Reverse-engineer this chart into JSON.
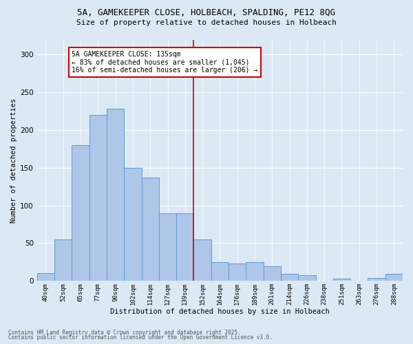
{
  "title_line1": "5A, GAMEKEEPER CLOSE, HOLBEACH, SPALDING, PE12 8QG",
  "title_line2": "Size of property relative to detached houses in Holbeach",
  "xlabel": "Distribution of detached houses by size in Holbeach",
  "ylabel": "Number of detached properties",
  "footer_line1": "Contains HM Land Registry data © Crown copyright and database right 2025.",
  "footer_line2": "Contains public sector information licensed under the Open Government Licence v3.0.",
  "categories": [
    "40sqm",
    "52sqm",
    "65sqm",
    "77sqm",
    "90sqm",
    "102sqm",
    "114sqm",
    "127sqm",
    "139sqm",
    "152sqm",
    "164sqm",
    "176sqm",
    "189sqm",
    "201sqm",
    "214sqm",
    "226sqm",
    "238sqm",
    "251sqm",
    "263sqm",
    "276sqm",
    "288sqm"
  ],
  "values": [
    10,
    55,
    180,
    220,
    228,
    150,
    137,
    90,
    90,
    55,
    25,
    23,
    25,
    19,
    9,
    8,
    0,
    3,
    0,
    4,
    9
  ],
  "bar_color": "#aec6e8",
  "bar_edge_color": "#5b9bd5",
  "background_color": "#dce9f5",
  "plot_bg_color": "#dce9f5",
  "grid_color": "#ffffff",
  "vline_x": 8.5,
  "vline_color": "#cc0000",
  "annotation_text": "5A GAMEKEEPER CLOSE: 135sqm\n← 83% of detached houses are smaller (1,045)\n16% of semi-detached houses are larger (206) →",
  "annotation_box_color": "#ffffff",
  "annotation_box_edge_color": "#cc0000",
  "ylim": [
    0,
    320
  ],
  "yticks": [
    0,
    50,
    100,
    150,
    200,
    250,
    300
  ]
}
